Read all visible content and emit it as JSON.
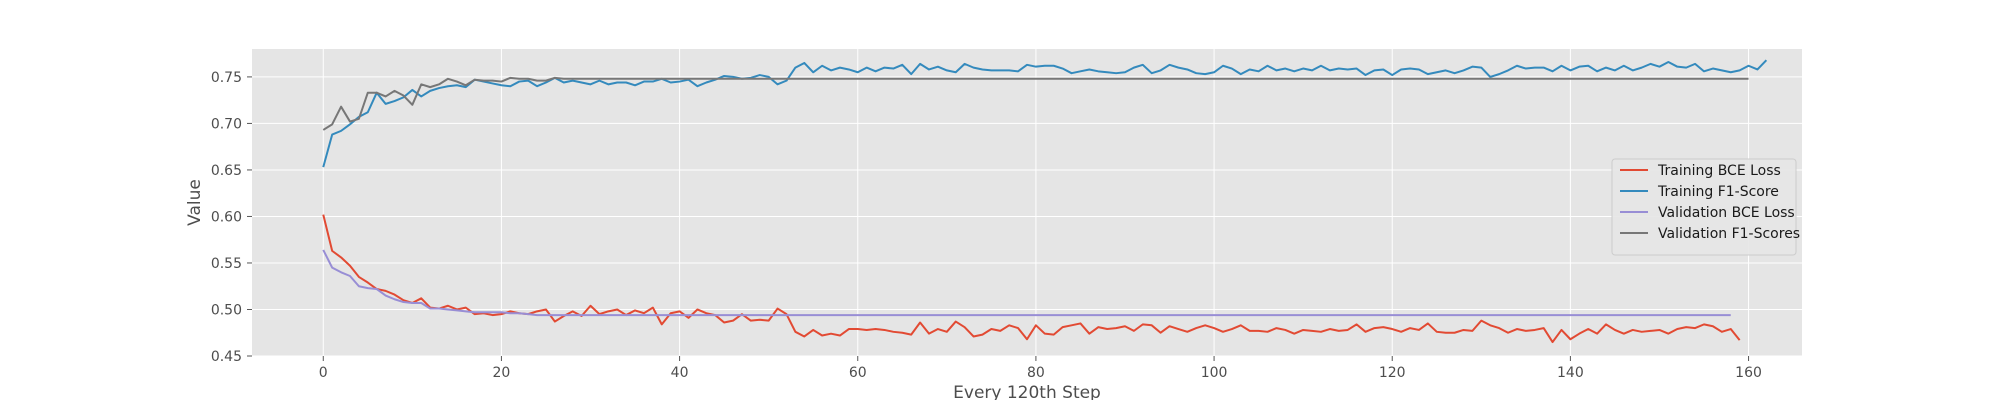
{
  "chart_data": {
    "type": "line",
    "xlabel": "Every 120th Step",
    "ylabel": "Value",
    "xlim": [
      -8,
      166
    ],
    "ylim": [
      0.45,
      0.78
    ],
    "x_ticks": [
      0,
      20,
      40,
      60,
      80,
      100,
      120,
      140,
      160
    ],
    "x_tick_labels": [
      "0",
      "20",
      "40",
      "60",
      "80",
      "100",
      "120",
      "140",
      "160"
    ],
    "y_ticks": [
      0.45,
      0.5,
      0.55,
      0.6,
      0.65,
      0.7,
      0.75
    ],
    "y_tick_labels": [
      "0.45",
      "0.50",
      "0.55",
      "0.60",
      "0.65",
      "0.70",
      "0.75"
    ],
    "grid": true,
    "legend_position": "center-right",
    "colors": {
      "plot_background": "#e5e5e5",
      "grid": "#ffffff"
    },
    "series": [
      {
        "name": "Training BCE Loss",
        "color": "#e24a33",
        "start_x": 0,
        "values": [
          0.602,
          0.563,
          0.556,
          0.547,
          0.535,
          0.529,
          0.522,
          0.52,
          0.516,
          0.51,
          0.507,
          0.512,
          0.502,
          0.501,
          0.504,
          0.5,
          0.502,
          0.495,
          0.496,
          0.494,
          0.495,
          0.498,
          0.496,
          0.495,
          0.498,
          0.5,
          0.487,
          0.493,
          0.498,
          0.493,
          0.504,
          0.495,
          0.498,
          0.5,
          0.494,
          0.499,
          0.496,
          0.502,
          0.484,
          0.496,
          0.498,
          0.491,
          0.5,
          0.496,
          0.494,
          0.486,
          0.488,
          0.495,
          0.488,
          0.489,
          0.488,
          0.501,
          0.495,
          0.476,
          0.471,
          0.478,
          0.472,
          0.474,
          0.472,
          0.479,
          0.479,
          0.478,
          0.479,
          0.478,
          0.476,
          0.475,
          0.473,
          0.486,
          0.474,
          0.479,
          0.476,
          0.487,
          0.481,
          0.471,
          0.473,
          0.479,
          0.477,
          0.483,
          0.48,
          0.468,
          0.483,
          0.474,
          0.473,
          0.481,
          0.483,
          0.485,
          0.474,
          0.481,
          0.479,
          0.48,
          0.482,
          0.477,
          0.484,
          0.483,
          0.475,
          0.482,
          0.479,
          0.476,
          0.48,
          0.483,
          0.48,
          0.476,
          0.479,
          0.483,
          0.477,
          0.477,
          0.476,
          0.48,
          0.478,
          0.474,
          0.478,
          0.477,
          0.476,
          0.479,
          0.477,
          0.478,
          0.484,
          0.476,
          0.48,
          0.481,
          0.479,
          0.476,
          0.48,
          0.478,
          0.485,
          0.476,
          0.475,
          0.475,
          0.478,
          0.477,
          0.488,
          0.483,
          0.48,
          0.475,
          0.479,
          0.477,
          0.478,
          0.48,
          0.465,
          0.478,
          0.468,
          0.474,
          0.479,
          0.474,
          0.484,
          0.478,
          0.474,
          0.478,
          0.476,
          0.477,
          0.478,
          0.474,
          0.479,
          0.481,
          0.48,
          0.484,
          0.482,
          0.476,
          0.479,
          0.467
        ]
      },
      {
        "name": "Training F1-Score",
        "color": "#348abd",
        "start_x": 0,
        "values": [
          0.653,
          0.688,
          0.692,
          0.699,
          0.707,
          0.712,
          0.733,
          0.721,
          0.724,
          0.728,
          0.736,
          0.729,
          0.735,
          0.738,
          0.74,
          0.741,
          0.739,
          0.747,
          0.745,
          0.743,
          0.741,
          0.74,
          0.745,
          0.746,
          0.74,
          0.744,
          0.749,
          0.744,
          0.746,
          0.744,
          0.742,
          0.746,
          0.742,
          0.744,
          0.744,
          0.741,
          0.745,
          0.745,
          0.748,
          0.744,
          0.745,
          0.747,
          0.74,
          0.744,
          0.747,
          0.751,
          0.75,
          0.748,
          0.749,
          0.752,
          0.75,
          0.742,
          0.746,
          0.76,
          0.765,
          0.755,
          0.762,
          0.757,
          0.76,
          0.758,
          0.755,
          0.76,
          0.756,
          0.76,
          0.759,
          0.763,
          0.753,
          0.764,
          0.758,
          0.761,
          0.757,
          0.755,
          0.764,
          0.76,
          0.758,
          0.757,
          0.757,
          0.757,
          0.756,
          0.763,
          0.761,
          0.762,
          0.762,
          0.759,
          0.754,
          0.756,
          0.758,
          0.756,
          0.755,
          0.754,
          0.755,
          0.76,
          0.763,
          0.754,
          0.757,
          0.763,
          0.76,
          0.758,
          0.754,
          0.753,
          0.755,
          0.762,
          0.759,
          0.753,
          0.758,
          0.756,
          0.762,
          0.757,
          0.759,
          0.756,
          0.759,
          0.757,
          0.762,
          0.757,
          0.759,
          0.758,
          0.759,
          0.752,
          0.757,
          0.758,
          0.752,
          0.758,
          0.759,
          0.758,
          0.753,
          0.755,
          0.757,
          0.754,
          0.757,
          0.761,
          0.76,
          0.75,
          0.753,
          0.757,
          0.762,
          0.759,
          0.76,
          0.76,
          0.756,
          0.762,
          0.757,
          0.761,
          0.762,
          0.756,
          0.76,
          0.757,
          0.762,
          0.757,
          0.76,
          0.764,
          0.761,
          0.766,
          0.761,
          0.76,
          0.764,
          0.756,
          0.759,
          0.757,
          0.755,
          0.757,
          0.762,
          0.758,
          0.768
        ]
      },
      {
        "name": "Validation BCE Loss",
        "color": "#988ed5",
        "start_x": 0,
        "values": [
          0.564,
          0.545,
          0.54,
          0.536,
          0.525,
          0.523,
          0.522,
          0.515,
          0.511,
          0.508,
          0.507,
          0.507,
          0.501,
          0.501,
          0.5,
          0.499,
          0.498,
          0.497,
          0.497,
          0.497,
          0.497,
          0.496,
          0.496,
          0.495,
          0.494,
          0.494,
          0.494,
          0.494,
          0.494,
          0.494,
          0.494,
          0.494,
          0.494,
          0.494,
          0.494,
          0.494,
          0.494,
          0.494,
          0.494,
          0.494,
          0.494,
          0.494,
          0.494,
          0.494,
          0.494,
          0.494,
          0.494,
          0.494,
          0.494,
          0.494,
          0.494,
          0.494,
          0.494,
          0.494,
          0.494,
          0.494,
          0.494,
          0.494,
          0.494,
          0.494,
          0.494,
          0.494,
          0.494,
          0.494,
          0.494,
          0.494,
          0.494,
          0.494,
          0.494,
          0.494,
          0.494,
          0.494,
          0.494,
          0.494,
          0.494,
          0.494,
          0.494,
          0.494,
          0.494,
          0.494,
          0.494,
          0.494,
          0.494,
          0.494,
          0.494,
          0.494,
          0.494,
          0.494,
          0.494,
          0.494,
          0.494,
          0.494,
          0.494,
          0.494,
          0.494,
          0.494,
          0.494,
          0.494,
          0.494,
          0.494,
          0.494,
          0.494,
          0.494,
          0.494,
          0.494,
          0.494,
          0.494,
          0.494,
          0.494,
          0.494,
          0.494,
          0.494,
          0.494,
          0.494,
          0.494,
          0.494,
          0.494,
          0.494,
          0.494,
          0.494,
          0.494,
          0.494,
          0.494,
          0.494,
          0.494,
          0.494,
          0.494,
          0.494,
          0.494,
          0.494,
          0.494,
          0.494,
          0.494,
          0.494,
          0.494,
          0.494,
          0.494,
          0.494,
          0.494,
          0.494,
          0.494,
          0.494,
          0.494,
          0.494,
          0.494,
          0.494,
          0.494,
          0.494,
          0.494,
          0.494,
          0.494,
          0.494,
          0.494,
          0.494,
          0.494,
          0.494,
          0.494,
          0.494,
          0.494
        ]
      },
      {
        "name": "Validation F1-Scores",
        "color": "#777777",
        "start_x": 0,
        "values": [
          0.693,
          0.699,
          0.718,
          0.702,
          0.705,
          0.733,
          0.733,
          0.729,
          0.735,
          0.73,
          0.72,
          0.742,
          0.739,
          0.742,
          0.748,
          0.745,
          0.741,
          0.747,
          0.746,
          0.746,
          0.745,
          0.749,
          0.748,
          0.748,
          0.746,
          0.746,
          0.749,
          0.748,
          0.748,
          0.748,
          0.748,
          0.748,
          0.748,
          0.748,
          0.748,
          0.748,
          0.748,
          0.748,
          0.748,
          0.748,
          0.748,
          0.748,
          0.748,
          0.748,
          0.748,
          0.748,
          0.748,
          0.748,
          0.748,
          0.748,
          0.748,
          0.748,
          0.748,
          0.748,
          0.748,
          0.748,
          0.748,
          0.748,
          0.748,
          0.748,
          0.748,
          0.748,
          0.748,
          0.748,
          0.748,
          0.748,
          0.748,
          0.748,
          0.748,
          0.748,
          0.748,
          0.748,
          0.748,
          0.748,
          0.748,
          0.748,
          0.748,
          0.748,
          0.748,
          0.748,
          0.748,
          0.748,
          0.748,
          0.748,
          0.748,
          0.748,
          0.748,
          0.748,
          0.748,
          0.748,
          0.748,
          0.748,
          0.748,
          0.748,
          0.748,
          0.748,
          0.748,
          0.748,
          0.748,
          0.748,
          0.748,
          0.748,
          0.748,
          0.748,
          0.748,
          0.748,
          0.748,
          0.748,
          0.748,
          0.748,
          0.748,
          0.748,
          0.748,
          0.748,
          0.748,
          0.748,
          0.748,
          0.748,
          0.748,
          0.748,
          0.748,
          0.748,
          0.748,
          0.748,
          0.748,
          0.748,
          0.748,
          0.748,
          0.748,
          0.748,
          0.748,
          0.748,
          0.748,
          0.748,
          0.748,
          0.748,
          0.748,
          0.748,
          0.748,
          0.748,
          0.748,
          0.748,
          0.748,
          0.748,
          0.748,
          0.748,
          0.748,
          0.748,
          0.748,
          0.748,
          0.748,
          0.748,
          0.748,
          0.748,
          0.748,
          0.748,
          0.748,
          0.748,
          0.748,
          0.748,
          0.748
        ]
      }
    ]
  }
}
